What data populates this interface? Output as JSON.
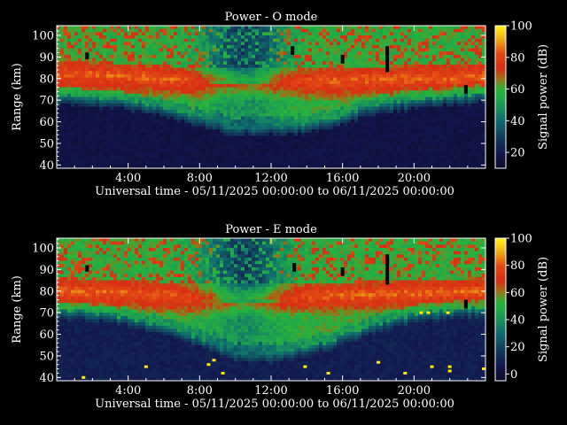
{
  "chart_data": [
    {
      "type": "heatmap",
      "title": "Power - O mode",
      "xlabel": "Universal time - 05/11/2025 00:00:00 to 06/11/2025 00:00:00",
      "ylabel": "Range (km)",
      "colorbar_label": "Signal power (dB)",
      "x_ticks": [
        "4:00",
        "8:00",
        "12:00",
        "16:00",
        "20:00"
      ],
      "x_tick_hours": [
        4,
        8,
        12,
        16,
        20
      ],
      "xlim_hours": [
        0,
        24
      ],
      "y_ticks": [
        40,
        50,
        60,
        70,
        80,
        90,
        100
      ],
      "ylim": [
        38.5,
        104.5
      ],
      "colorbar_ticks": [
        20,
        40,
        60,
        80,
        100
      ],
      "colorbar_range": [
        10,
        100
      ],
      "features": {
        "boundary_km": [
          [
            0,
            72
          ],
          [
            2,
            71
          ],
          [
            4,
            70
          ],
          [
            6,
            67
          ],
          [
            8,
            62
          ],
          [
            10,
            58
          ],
          [
            12,
            58
          ],
          [
            14,
            59
          ],
          [
            16,
            63
          ],
          [
            18,
            68
          ],
          [
            20,
            70
          ],
          [
            22,
            72
          ],
          [
            24,
            73
          ]
        ],
        "strong_layer_km": [
          [
            0,
            82
          ],
          [
            4,
            81
          ],
          [
            8,
            79
          ],
          [
            12,
            79
          ],
          [
            16,
            79
          ],
          [
            20,
            80
          ],
          [
            24,
            81
          ]
        ],
        "dropouts": [
          {
            "hour": 1.7,
            "km": [
              89,
              92
            ]
          },
          {
            "hour": 13.2,
            "km": [
              91,
              95
            ]
          },
          {
            "hour": 16,
            "km": [
              87,
              91
            ]
          },
          {
            "hour": 18.5,
            "km": [
              83,
              95
            ]
          },
          {
            "hour": 22.9,
            "km": [
              73,
              77
            ]
          }
        ]
      }
    },
    {
      "type": "heatmap",
      "title": "Power - E mode",
      "xlabel": "Universal time - 05/11/2025 00:00:00 to 06/11/2025 00:00:00",
      "ylabel": "Range (km)",
      "colorbar_label": "Signal power (dB)",
      "x_ticks": [
        "4:00",
        "8:00",
        "12:00",
        "16:00",
        "20:00"
      ],
      "x_tick_hours": [
        4,
        8,
        12,
        16,
        20
      ],
      "xlim_hours": [
        0,
        24
      ],
      "y_ticks": [
        40,
        50,
        60,
        70,
        80,
        90,
        100
      ],
      "ylim": [
        38.5,
        104.5
      ],
      "colorbar_ticks": [
        0,
        20,
        40,
        60,
        80,
        100
      ],
      "colorbar_range": [
        -5,
        100
      ],
      "features": {
        "boundary_km": [
          [
            0,
            71
          ],
          [
            2,
            70
          ],
          [
            4,
            68
          ],
          [
            6,
            64
          ],
          [
            8,
            58
          ],
          [
            10,
            52
          ],
          [
            12,
            51
          ],
          [
            14,
            54
          ],
          [
            16,
            59
          ],
          [
            18,
            65
          ],
          [
            20,
            69
          ],
          [
            22,
            71
          ],
          [
            24,
            72
          ]
        ],
        "strong_layer_km": [
          [
            0,
            80
          ],
          [
            4,
            79
          ],
          [
            8,
            77
          ],
          [
            12,
            77
          ],
          [
            16,
            78
          ],
          [
            20,
            79
          ],
          [
            24,
            80
          ]
        ],
        "dropouts": [
          {
            "hour": 1.7,
            "km": [
              89,
              92
            ]
          },
          {
            "hour": 13.3,
            "km": [
              89,
              93
            ]
          },
          {
            "hour": 16,
            "km": [
              87,
              91
            ]
          },
          {
            "hour": 18.5,
            "km": [
              83,
              97
            ]
          },
          {
            "hour": 22.9,
            "km": [
              72,
              76
            ]
          }
        ],
        "noise_spikes": [
          {
            "hour": 1.5,
            "km": 40
          },
          {
            "hour": 5,
            "km": 45
          },
          {
            "hour": 8.5,
            "km": 46
          },
          {
            "hour": 8.8,
            "km": 48
          },
          {
            "hour": 9.3,
            "km": 42
          },
          {
            "hour": 13.9,
            "km": 45
          },
          {
            "hour": 15.2,
            "km": 42
          },
          {
            "hour": 18,
            "km": 47
          },
          {
            "hour": 20.4,
            "km": 70
          },
          {
            "hour": 20.8,
            "km": 70
          },
          {
            "hour": 21.9,
            "km": 70
          },
          {
            "hour": 21,
            "km": 45
          },
          {
            "hour": 22,
            "km": 45
          },
          {
            "hour": 22,
            "km": 43
          },
          {
            "hour": 19.5,
            "km": 42
          },
          {
            "hour": 23.9,
            "km": 44
          }
        ]
      }
    }
  ]
}
